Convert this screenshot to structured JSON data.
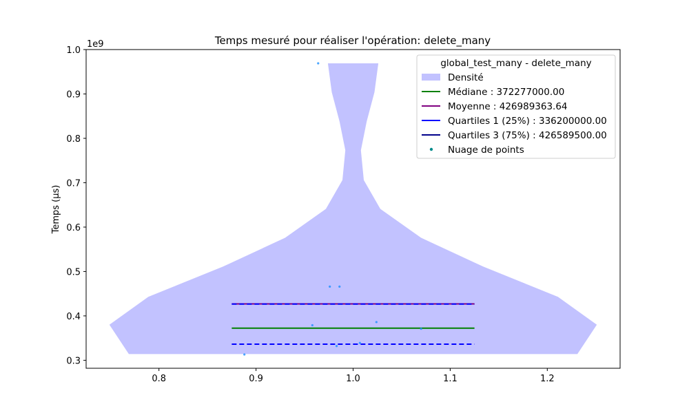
{
  "chart_data": {
    "type": "violin",
    "title": "Temps mesuré pour réaliser l'opération: delete_many",
    "xlabel": "",
    "ylabel": "Temps (µs)",
    "y_scale_label": "1e9",
    "xlim": [
      0.725,
      1.275
    ],
    "ylim": [
      0.282,
      1.0
    ],
    "x_ticks": [
      {
        "value": 0.8,
        "label": "0.8"
      },
      {
        "value": 0.9,
        "label": "0.9"
      },
      {
        "value": 1.0,
        "label": "1.0"
      },
      {
        "value": 1.1,
        "label": "1.1"
      },
      {
        "value": 1.2,
        "label": "1.2"
      }
    ],
    "y_ticks": [
      {
        "value": 0.3,
        "label": "0.3"
      },
      {
        "value": 0.4,
        "label": "0.4"
      },
      {
        "value": 0.5,
        "label": "0.5"
      },
      {
        "value": 0.6,
        "label": "0.6"
      },
      {
        "value": 0.7,
        "label": "0.7"
      },
      {
        "value": 0.8,
        "label": "0.8"
      },
      {
        "value": 0.9,
        "label": "0.9"
      },
      {
        "value": 1.0,
        "label": "1.0"
      }
    ],
    "density_color": "#c2c2ff",
    "density_profile": [
      {
        "y": 0.314,
        "w": 0.231
      },
      {
        "y": 0.38,
        "w": 0.251
      },
      {
        "y": 0.443,
        "w": 0.211
      },
      {
        "y": 0.511,
        "w": 0.134
      },
      {
        "y": 0.576,
        "w": 0.07
      },
      {
        "y": 0.641,
        "w": 0.028
      },
      {
        "y": 0.706,
        "w": 0.011
      },
      {
        "y": 0.773,
        "w": 0.008
      },
      {
        "y": 0.838,
        "w": 0.014
      },
      {
        "y": 0.904,
        "w": 0.022
      },
      {
        "y": 0.969,
        "w": 0.026
      }
    ],
    "center": 1.0,
    "line_half_width": 0.125,
    "median": {
      "value": 0.372277,
      "color": "#008000"
    },
    "mean": {
      "value": 0.426989,
      "color": "#800080"
    },
    "quartile1": {
      "value": 0.3362,
      "color": "#0000ff"
    },
    "quartile3": {
      "value": 0.4265895,
      "color": "#0000ff"
    },
    "points_color": "#1e90ff",
    "points": [
      {
        "x": 0.964,
        "y": 0.969
      },
      {
        "x": 0.976,
        "y": 0.466
      },
      {
        "x": 0.986,
        "y": 0.466
      },
      {
        "x": 0.958,
        "y": 0.379
      },
      {
        "x": 1.024,
        "y": 0.386
      },
      {
        "x": 1.07,
        "y": 0.371
      },
      {
        "x": 0.888,
        "y": 0.313
      },
      {
        "x": 0.983,
        "y": 0.332
      },
      {
        "x": 1.007,
        "y": 0.339
      }
    ],
    "legend": {
      "placement": "top-right",
      "title": "global_test_many - delete_many",
      "entries": [
        {
          "kind": "patch",
          "label": "Densité",
          "color": "#c2c2ff"
        },
        {
          "kind": "line",
          "label": "Médiane : 372277000.00",
          "color": "#008000"
        },
        {
          "kind": "line",
          "label": "Moyenne : 426989363.64",
          "color": "#800080"
        },
        {
          "kind": "line",
          "label": "Quartiles 1 (25%) : 336200000.00",
          "color": "#0000ff"
        },
        {
          "kind": "line",
          "label": "Quartiles 3 (75%) : 426589500.00",
          "color": "#00008b"
        },
        {
          "kind": "dot",
          "label": "Nuage de points",
          "color": "#008b8b"
        }
      ]
    }
  }
}
